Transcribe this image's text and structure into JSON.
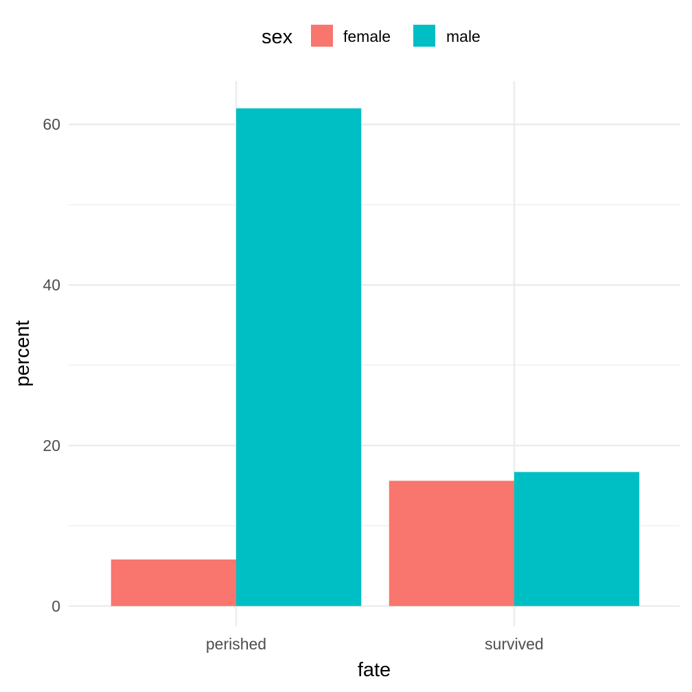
{
  "chart_data": {
    "type": "bar",
    "xlabel": "fate",
    "ylabel": "percent",
    "categories": [
      "perished",
      "survived"
    ],
    "series": [
      {
        "name": "female",
        "color": "#F8766D",
        "values": [
          5.8,
          15.6
        ]
      },
      {
        "name": "male",
        "color": "#00BFC4",
        "values": [
          62.0,
          16.7
        ]
      }
    ],
    "ylim": [
      -2.5,
      65.4
    ],
    "yticks": [
      0,
      20,
      40,
      60
    ],
    "ytick_labels": [
      "0",
      "20",
      "40",
      "60"
    ],
    "grid": true,
    "legend": {
      "title": "sex",
      "position": "top",
      "entries": [
        "female",
        "male"
      ]
    }
  }
}
